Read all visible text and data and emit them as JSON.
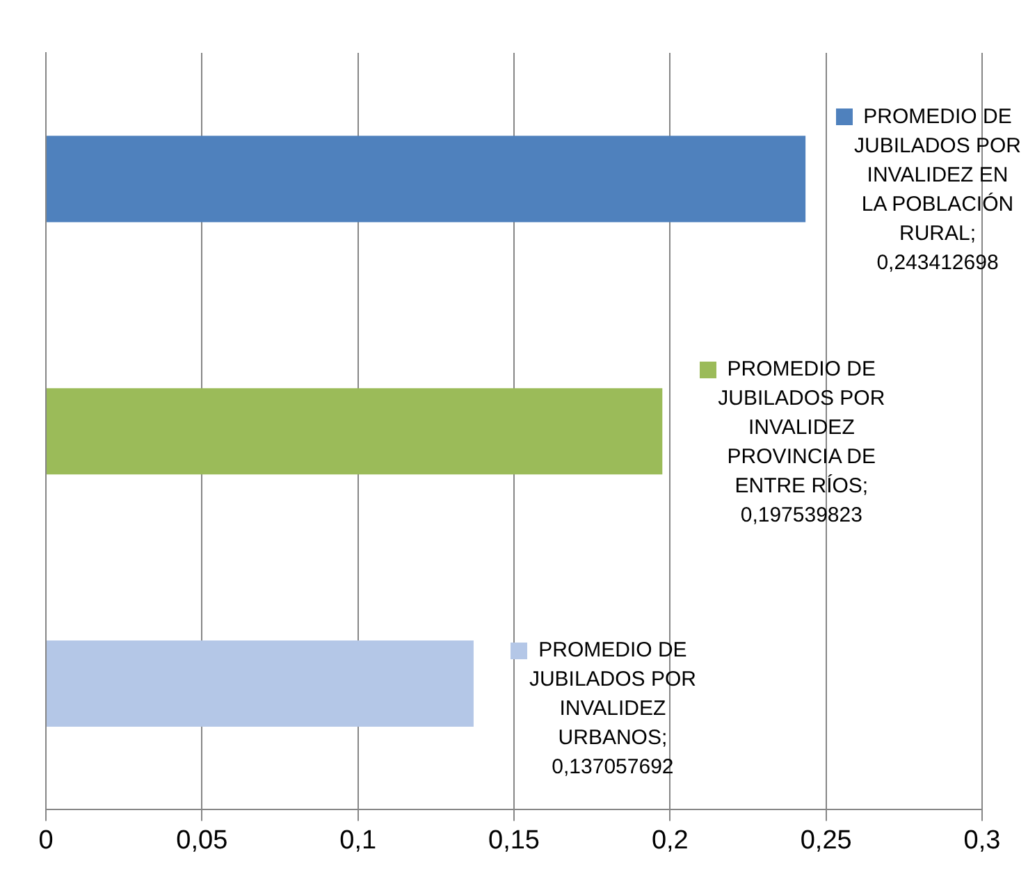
{
  "chart_data": {
    "type": "bar",
    "orientation": "horizontal",
    "categories": [
      null,
      null,
      null
    ],
    "values": [
      0.243412698,
      0.197539823,
      0.137057692
    ],
    "colors": [
      "#4f81bd",
      "#9bbb59",
      "#b4c7e7"
    ],
    "value_labels": [
      "PROMEDIO DE JUBILADOS POR INVALIDEZ EN LA POBLACIÓN RURAL; 0,243412698",
      "PROMEDIO DE JUBILADOS POR INVALIDEZ PROVINCIA DE ENTRE RÍOS; 0,197539823",
      "PROMEDIO DE JUBILADOS POR INVALIDEZ URBANOS; 0,137057692"
    ],
    "xlim": [
      0,
      0.3
    ],
    "xticks": [
      0,
      {
        "value": 0.05,
        "label": "0,05"
      },
      {
        "value": 0.1,
        "label": "0,1"
      },
      {
        "value": 0.15,
        "label": "0,15"
      },
      {
        "value": 0.2,
        "label": "0,2"
      },
      {
        "value": 0.25,
        "label": "0,25"
      },
      {
        "value": 0.3,
        "label": "0,3"
      }
    ],
    "grid": "x",
    "tick_labels": "x"
  }
}
